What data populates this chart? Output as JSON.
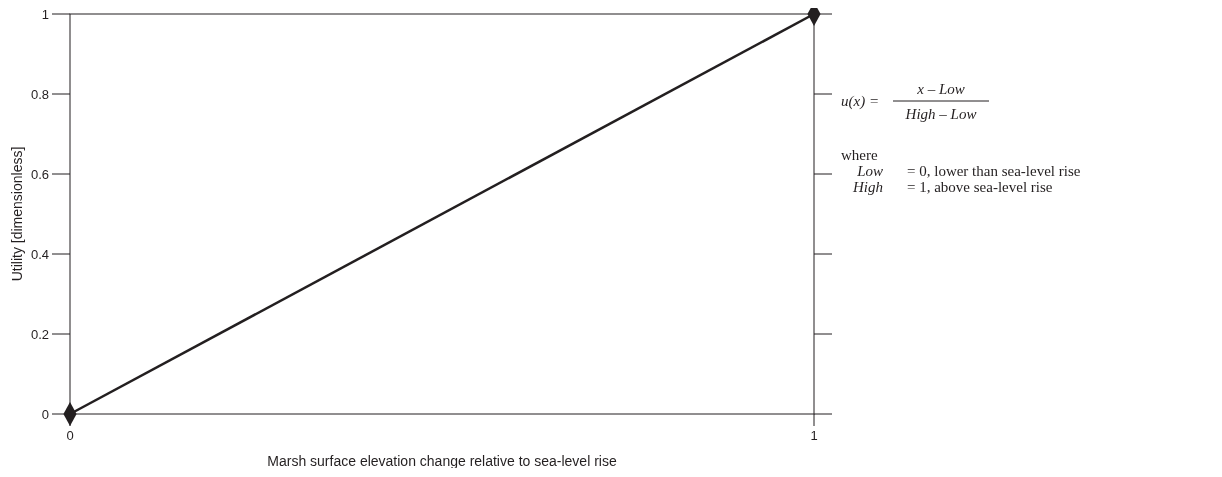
{
  "chart_data": {
    "type": "line",
    "xlabel": "Marsh surface elevation change relative to sea-level rise",
    "ylabel": "Utility [dimensionless]",
    "x": [
      0,
      1
    ],
    "series": [
      {
        "color": "#231f20",
        "values": [
          0,
          1
        ]
      }
    ],
    "xlim": [
      0,
      1
    ],
    "xticks": [
      0,
      1
    ],
    "ylim": [
      0,
      1
    ],
    "yticks": [
      0,
      0.2,
      0.4,
      0.6,
      0.8,
      1
    ],
    "marker": "diamond",
    "line_style": "solid",
    "grid": false,
    "annotations": [
      "u(x) =",
      "x – Low",
      "High – Low",
      "where",
      "Low",
      "= 0, lower than sea-level rise",
      "High",
      "= 1, above sea-level rise"
    ]
  }
}
